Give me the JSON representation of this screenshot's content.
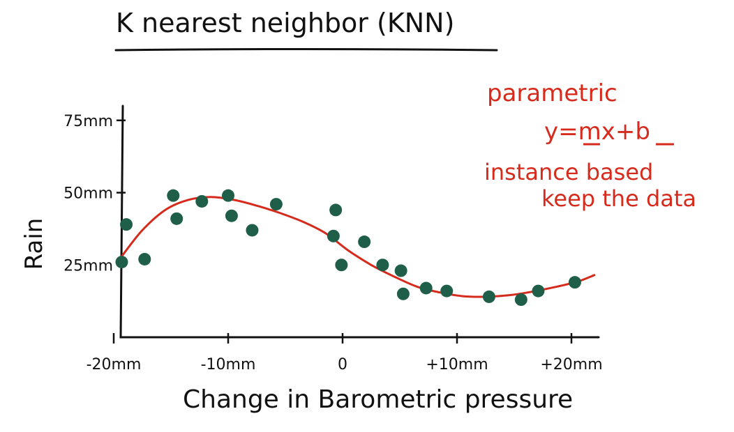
{
  "chart_data": {
    "type": "scatter",
    "title": "K nearest neighbor (KNN)",
    "xlabel": "Change in Barometric pressure",
    "ylabel": "Rain",
    "x_ticks": [
      {
        "value": -20,
        "label": "-20mm"
      },
      {
        "value": -10,
        "label": "-10mm"
      },
      {
        "value": 0,
        "label": "0"
      },
      {
        "value": 10,
        "label": "+10mm"
      },
      {
        "value": 20,
        "label": "+20mm"
      }
    ],
    "y_ticks": [
      {
        "value": 25,
        "label": "25mm"
      },
      {
        "value": 50,
        "label": "50mm"
      },
      {
        "value": 75,
        "label": "75mm"
      }
    ],
    "xlim": [
      -22,
      23
    ],
    "ylim": [
      0,
      80
    ],
    "grid": false,
    "points": [
      {
        "x": -19.3,
        "y": 26
      },
      {
        "x": -18.9,
        "y": 39
      },
      {
        "x": -17.3,
        "y": 27
      },
      {
        "x": -14.8,
        "y": 49
      },
      {
        "x": -14.5,
        "y": 41
      },
      {
        "x": -12.3,
        "y": 47
      },
      {
        "x": -10.0,
        "y": 49
      },
      {
        "x": -9.7,
        "y": 42
      },
      {
        "x": -7.9,
        "y": 37
      },
      {
        "x": -5.8,
        "y": 46
      },
      {
        "x": -0.8,
        "y": 35
      },
      {
        "x": -0.6,
        "y": 44
      },
      {
        "x": -0.1,
        "y": 25
      },
      {
        "x": 1.9,
        "y": 33
      },
      {
        "x": 3.5,
        "y": 25
      },
      {
        "x": 5.1,
        "y": 23
      },
      {
        "x": 5.3,
        "y": 15
      },
      {
        "x": 7.3,
        "y": 17
      },
      {
        "x": 9.1,
        "y": 16
      },
      {
        "x": 12.8,
        "y": 14
      },
      {
        "x": 15.6,
        "y": 13
      },
      {
        "x": 17.1,
        "y": 16
      },
      {
        "x": 20.3,
        "y": 19
      }
    ],
    "fit_curve": [
      [
        -19.3,
        28
      ],
      [
        -17.5,
        37
      ],
      [
        -15.5,
        44
      ],
      [
        -13.5,
        47.5
      ],
      [
        -11.5,
        48.5
      ],
      [
        -9.5,
        47.5
      ],
      [
        -7.5,
        45.5
      ],
      [
        -5.5,
        43
      ],
      [
        -3.5,
        40
      ],
      [
        -1.5,
        36
      ],
      [
        0.5,
        30
      ],
      [
        2.5,
        25
      ],
      [
        4.5,
        21
      ],
      [
        6.5,
        17.5
      ],
      [
        8.5,
        15.5
      ],
      [
        10.5,
        14.2
      ],
      [
        12.5,
        14
      ],
      [
        14.5,
        14.5
      ],
      [
        16.5,
        15.7
      ],
      [
        18.5,
        17.3
      ],
      [
        20.5,
        19.2
      ],
      [
        22,
        21.5
      ]
    ],
    "colors": {
      "points": "#1f5e49",
      "curve": "#d62a1c",
      "ink": "#111111",
      "annotation": "#d62a1c"
    }
  },
  "annotations": {
    "parametric": "parametric",
    "equation": "y=mx+b",
    "instance_line1": "instance based",
    "instance_line2": "keep the data"
  }
}
